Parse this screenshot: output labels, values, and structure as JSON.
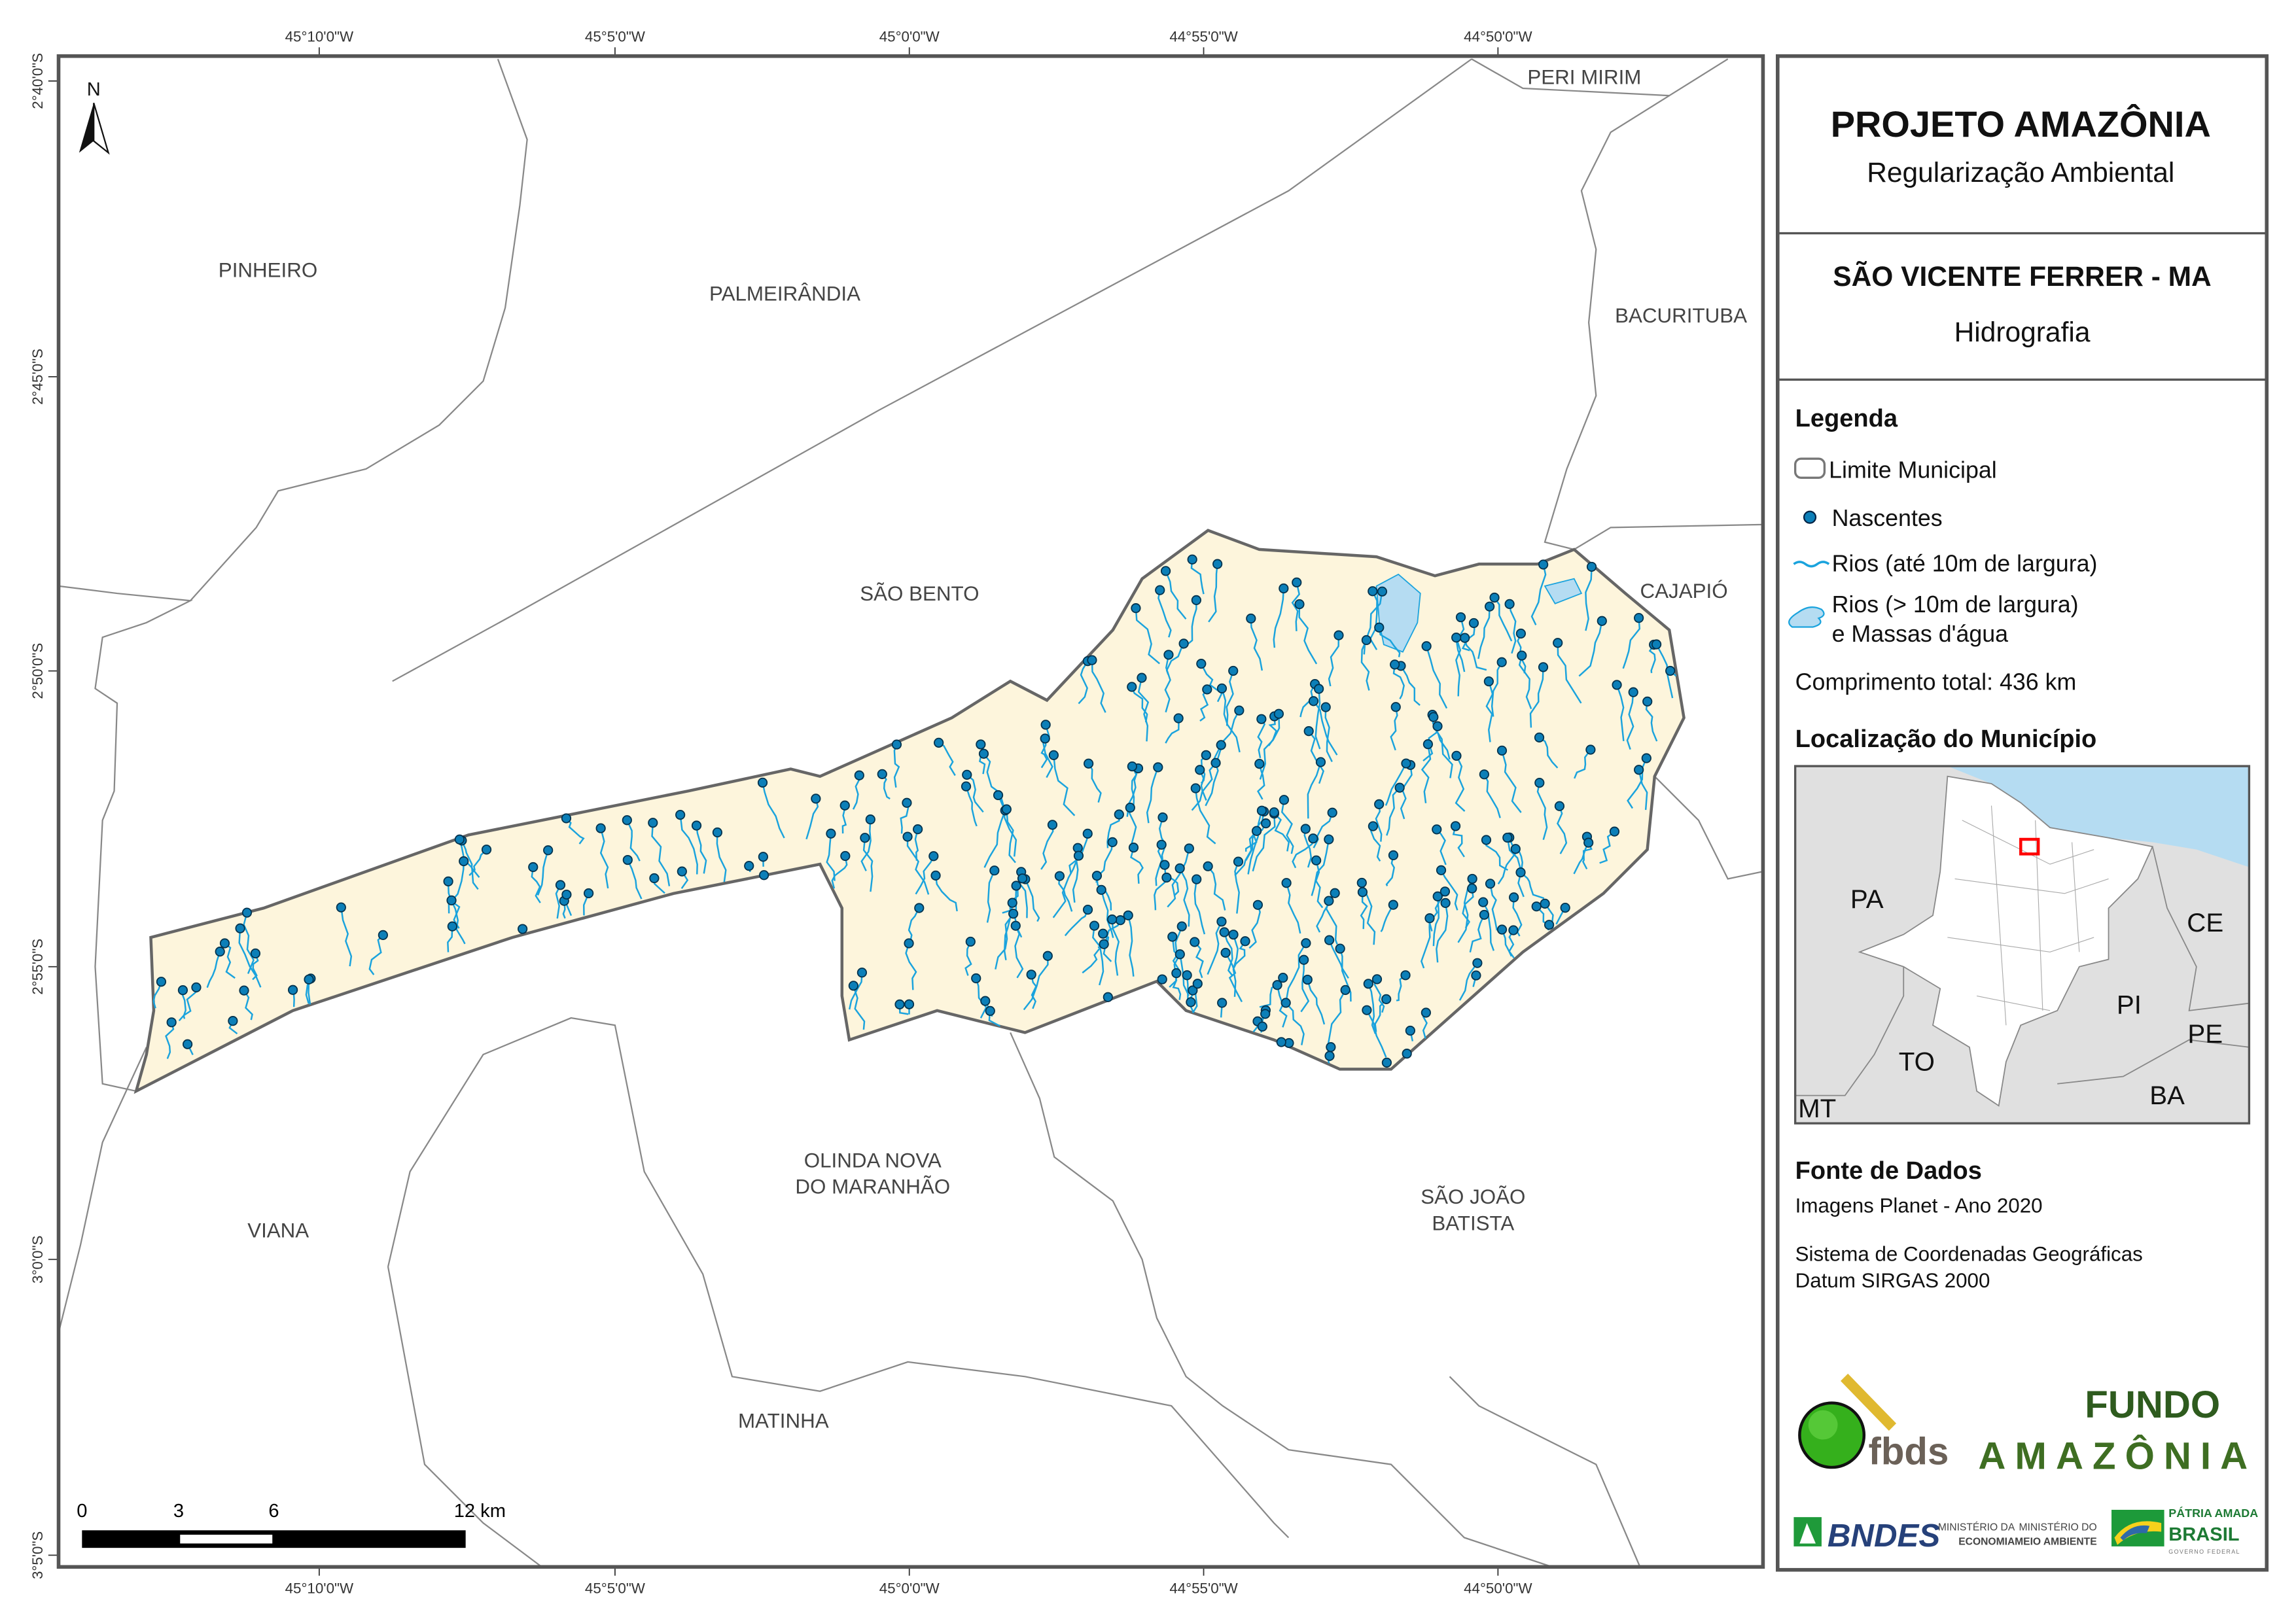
{
  "axes": {
    "top_ticks": [
      "45°10'0\"W",
      "45°5'0\"W",
      "45°0'0\"W",
      "44°55'0\"W",
      "44°50'0\"W"
    ],
    "bottom_ticks": [
      "45°10'0\"W",
      "45°5'0\"W",
      "45°0'0\"W",
      "44°55'0\"W",
      "44°50'0\"W"
    ],
    "left_ticks": [
      "2°40'0\"S",
      "2°45'0\"S",
      "2°50'0\"S",
      "2°55'0\"S",
      "3°0'0\"S",
      "3°5'0\"S"
    ]
  },
  "north_arrow": {
    "label": "N"
  },
  "towns": {
    "pinheiro": "PINHEIRO",
    "palmeirandia": "PALMEIRÂNDIA",
    "peri_mirim": "PERI MIRIM",
    "bacurituba": "BACURITUBA",
    "sao_bento": "SÃO BENTO",
    "cajapio": "CAJAPIÓ",
    "olinda_1": "OLINDA NOVA",
    "olinda_2": "DO MARANHÃO",
    "viana": "VIANA",
    "sao_joao_1": "SÃO JOÃO",
    "sao_joao_2": "BATISTA",
    "matinha": "MATINHA"
  },
  "scale_bar": {
    "labels": [
      "0",
      "3",
      "6",
      "12 km"
    ]
  },
  "panel": {
    "title": "PROJETO AMAZÔNIA",
    "subtitle": "Regularização Ambiental",
    "municipality": "SÃO VICENTE FERRER - MA",
    "theme": "Hidrografia",
    "legend_title": "Legenda",
    "legend": {
      "limite": "Limite Municipal",
      "nascentes": "Nascentes",
      "rios_pequenos": "Rios (até 10m de largura)",
      "rios_grandes_1": "Rios (> 10m de largura)",
      "rios_grandes_2": "e Massas d'água",
      "comprimento": "Comprimento total:  436 km"
    },
    "location_title": "Localização do Município",
    "inset_states": {
      "PA": "PA",
      "CE": "CE",
      "PI": "PI",
      "PE": "PE",
      "TO": "TO",
      "BA": "BA",
      "MT": "MT"
    },
    "sources_title": "Fonte de Dados",
    "source_1": "Imagens Planet - Ano 2020",
    "source_2": "Sistema de Coordenadas Geográficas",
    "source_3": "Datum SIRGAS 2000"
  },
  "logos": {
    "fbds": "fbds",
    "fundo_1": "FUNDO",
    "fundo_2": "AMAZÔNIA",
    "bndes": "BNDES",
    "min_economia_1": "MINISTÉRIO DA",
    "min_economia_2": "ECONOMIA",
    "min_ambiente_1": "MINISTÉRIO DO",
    "min_ambiente_2": "MEIO AMBIENTE",
    "brasil_1": "PÁTRIA AMADA",
    "brasil_2": "BRASIL",
    "brasil_3": "GOVERNO FEDERAL"
  },
  "colors": {
    "municipality_fill": "#fdf5dc",
    "river": "#1aa3dd",
    "water_body": "#b5dcf2",
    "spring": "#0c7fb8",
    "frame": "#555555",
    "border": "#888888",
    "inset_highlight": "#ff0000"
  }
}
